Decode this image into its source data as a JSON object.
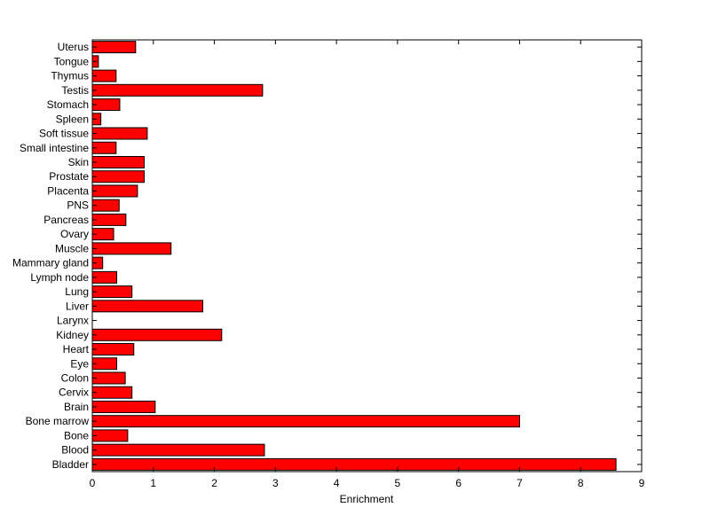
{
  "chart_data": {
    "type": "bar",
    "orientation": "horizontal",
    "categories": [
      "Bladder",
      "Blood",
      "Bone",
      "Bone marrow",
      "Brain",
      "Cervix",
      "Colon",
      "Eye",
      "Heart",
      "Kidney",
      "Larynx",
      "Liver",
      "Lung",
      "Lymph node",
      "Mammary gland",
      "Muscle",
      "Ovary",
      "Pancreas",
      "PNS",
      "Placenta",
      "Prostate",
      "Skin",
      "Small intestine",
      "Soft tissue",
      "Spleen",
      "Stomach",
      "Testis",
      "Thymus",
      "Tongue",
      "Uterus"
    ],
    "values": [
      8.58,
      2.82,
      0.58,
      7.0,
      1.03,
      0.65,
      0.54,
      0.4,
      0.68,
      2.12,
      0.0,
      1.81,
      0.65,
      0.4,
      0.17,
      1.29,
      0.35,
      0.55,
      0.44,
      0.74,
      0.85,
      0.85,
      0.39,
      0.9,
      0.14,
      0.45,
      2.79,
      0.39,
      0.1,
      0.71
    ],
    "xlabel": "Enrichment",
    "ylabel": "",
    "title": "",
    "xlim": [
      0,
      9
    ],
    "xticks": [
      0,
      1,
      2,
      3,
      4,
      5,
      6,
      7,
      8,
      9
    ],
    "grid": false,
    "colors": {
      "bar_fill": "#ff0000",
      "bar_edge": "#000000",
      "axis": "#000000",
      "background": "#ffffff"
    }
  }
}
